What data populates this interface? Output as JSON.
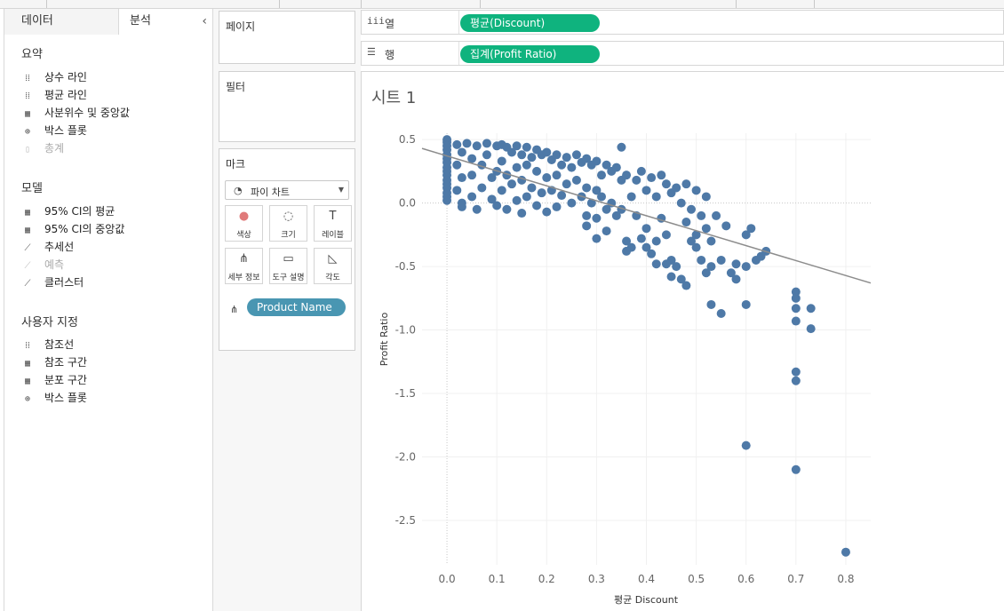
{
  "tabs": {
    "data": "데이터",
    "analysis": "분석"
  },
  "analytics": {
    "summary_title": "요약",
    "summary_items": [
      {
        "label": "상수 라인",
        "icon": "constant-line-icon",
        "glyph": "⁞⁞",
        "disabled": false
      },
      {
        "label": "평균 라인",
        "icon": "average-line-icon",
        "glyph": "⁞⁞",
        "disabled": false
      },
      {
        "label": "사분위수 및 중앙값",
        "icon": "quartile-icon",
        "glyph": "▦",
        "disabled": false
      },
      {
        "label": "박스 플롯",
        "icon": "box-plot-icon",
        "glyph": "⊕",
        "disabled": false
      },
      {
        "label": "총계",
        "icon": "totals-icon",
        "glyph": "▯",
        "disabled": true
      }
    ],
    "model_title": "모델",
    "model_items": [
      {
        "label": "95% CI의 평균",
        "icon": "ci-mean-icon",
        "glyph": "▦",
        "disabled": false,
        "selected": false
      },
      {
        "label": "95% CI의 중앙값",
        "icon": "ci-median-icon",
        "glyph": "▦",
        "disabled": false,
        "selected": false
      },
      {
        "label": "추세선",
        "icon": "trend-line-icon",
        "glyph": "⟋",
        "disabled": false,
        "selected": true
      },
      {
        "label": "예측",
        "icon": "forecast-icon",
        "glyph": "⟋",
        "disabled": true,
        "selected": false
      },
      {
        "label": "클러스터",
        "icon": "cluster-icon",
        "glyph": "⟋",
        "disabled": false,
        "selected": false
      }
    ],
    "custom_title": "사용자 지정",
    "custom_items": [
      {
        "label": "참조선",
        "icon": "reference-line-icon",
        "glyph": "⁞⁞",
        "disabled": false
      },
      {
        "label": "참조 구간",
        "icon": "reference-band-icon",
        "glyph": "▦",
        "disabled": false
      },
      {
        "label": "분포 구간",
        "icon": "distribution-band-icon",
        "glyph": "▦",
        "disabled": false
      },
      {
        "label": "박스 플롯",
        "icon": "box-plot-icon",
        "glyph": "⊕",
        "disabled": false
      }
    ]
  },
  "cards": {
    "pages_title": "페이지",
    "filters_title": "필터",
    "marks_title": "마크",
    "mark_type": "파이 차트",
    "mark_buttons": [
      {
        "label": "색상",
        "icon": "color-icon",
        "glyph": "●"
      },
      {
        "label": "크기",
        "icon": "size-icon",
        "glyph": "◌"
      },
      {
        "label": "레이블",
        "icon": "label-icon",
        "glyph": "T"
      },
      {
        "label": "세부 정보",
        "icon": "detail-icon",
        "glyph": "⋔"
      },
      {
        "label": "도구 설명",
        "icon": "tooltip-icon",
        "glyph": "▭"
      },
      {
        "label": "각도",
        "icon": "angle-icon",
        "glyph": "◺"
      }
    ],
    "detail_field": "Product Name"
  },
  "shelves": {
    "columns_label": "열",
    "rows_label": "행",
    "columns_pill": "평균(Discount)",
    "rows_pill": "집계(Profit Ratio)"
  },
  "sheet": {
    "title": "시트 1"
  },
  "colors": {
    "marks": "#4e79a7",
    "trend": "#8c8c8c",
    "pill_green": "#0fb37e",
    "pill_blue": "#4996b2"
  },
  "chart_data": {
    "type": "scatter",
    "xlabel": "평균 Discount",
    "ylabel": "Profit Ratio",
    "xlim": [
      -0.05,
      0.85
    ],
    "ylim": [
      -2.85,
      0.55
    ],
    "x_ticks": [
      "0.0",
      "0.1",
      "0.2",
      "0.3",
      "0.4",
      "0.5",
      "0.6",
      "0.7",
      "0.8"
    ],
    "y_ticks": [
      "0.5",
      "0.0",
      "-0.5",
      "-1.0",
      "-1.5",
      "-2.0",
      "-2.5"
    ],
    "trend_line": {
      "x": [
        -0.05,
        0.85
      ],
      "y": [
        0.43,
        -0.63
      ]
    },
    "series": [
      {
        "points": [
          [
            0.0,
            0.5
          ],
          [
            0.0,
            0.48
          ],
          [
            0.0,
            0.45
          ],
          [
            0.0,
            0.42
          ],
          [
            0.0,
            0.38
          ],
          [
            0.0,
            0.35
          ],
          [
            0.0,
            0.32
          ],
          [
            0.0,
            0.28
          ],
          [
            0.0,
            0.25
          ],
          [
            0.0,
            0.22
          ],
          [
            0.0,
            0.18
          ],
          [
            0.0,
            0.15
          ],
          [
            0.0,
            0.12
          ],
          [
            0.0,
            0.08
          ],
          [
            0.0,
            0.05
          ],
          [
            0.0,
            0.02
          ],
          [
            0.02,
            0.46
          ],
          [
            0.03,
            0.4
          ],
          [
            0.02,
            0.3
          ],
          [
            0.03,
            0.2
          ],
          [
            0.02,
            0.1
          ],
          [
            0.03,
            0.0
          ],
          [
            0.03,
            -0.03
          ],
          [
            0.04,
            0.47
          ],
          [
            0.05,
            0.35
          ],
          [
            0.05,
            0.22
          ],
          [
            0.05,
            0.05
          ],
          [
            0.06,
            -0.05
          ],
          [
            0.06,
            0.45
          ],
          [
            0.07,
            0.3
          ],
          [
            0.07,
            0.12
          ],
          [
            0.08,
            0.47
          ],
          [
            0.08,
            0.38
          ],
          [
            0.09,
            0.2
          ],
          [
            0.09,
            0.03
          ],
          [
            0.1,
            0.45
          ],
          [
            0.1,
            0.25
          ],
          [
            0.1,
            -0.02
          ],
          [
            0.11,
            0.46
          ],
          [
            0.11,
            0.33
          ],
          [
            0.11,
            0.1
          ],
          [
            0.12,
            0.44
          ],
          [
            0.12,
            0.22
          ],
          [
            0.12,
            -0.05
          ],
          [
            0.13,
            0.4
          ],
          [
            0.13,
            0.15
          ],
          [
            0.14,
            0.45
          ],
          [
            0.14,
            0.28
          ],
          [
            0.14,
            0.02
          ],
          [
            0.15,
            0.38
          ],
          [
            0.15,
            0.18
          ],
          [
            0.15,
            -0.08
          ],
          [
            0.16,
            0.44
          ],
          [
            0.16,
            0.3
          ],
          [
            0.16,
            0.05
          ],
          [
            0.17,
            0.36
          ],
          [
            0.17,
            0.12
          ],
          [
            0.18,
            0.42
          ],
          [
            0.18,
            0.25
          ],
          [
            0.18,
            -0.02
          ],
          [
            0.19,
            0.38
          ],
          [
            0.19,
            0.08
          ],
          [
            0.2,
            0.4
          ],
          [
            0.2,
            0.2
          ],
          [
            0.2,
            -0.07
          ],
          [
            0.21,
            0.34
          ],
          [
            0.21,
            0.1
          ],
          [
            0.22,
            0.38
          ],
          [
            0.22,
            0.22
          ],
          [
            0.22,
            -0.03
          ],
          [
            0.23,
            0.3
          ],
          [
            0.23,
            0.06
          ],
          [
            0.24,
            0.36
          ],
          [
            0.24,
            0.15
          ],
          [
            0.25,
            0.28
          ],
          [
            0.25,
            0.0
          ],
          [
            0.26,
            0.38
          ],
          [
            0.26,
            0.18
          ],
          [
            0.27,
            0.32
          ],
          [
            0.27,
            0.05
          ],
          [
            0.28,
            0.35
          ],
          [
            0.28,
            0.12
          ],
          [
            0.28,
            -0.1
          ],
          [
            0.29,
            0.3
          ],
          [
            0.29,
            0.0
          ],
          [
            0.3,
            0.33
          ],
          [
            0.3,
            0.1
          ],
          [
            0.3,
            -0.12
          ],
          [
            0.31,
            0.22
          ],
          [
            0.31,
            0.05
          ],
          [
            0.32,
            0.3
          ],
          [
            0.32,
            -0.05
          ],
          [
            0.33,
            0.25
          ],
          [
            0.33,
            0.0
          ],
          [
            0.34,
            0.28
          ],
          [
            0.34,
            -0.1
          ],
          [
            0.35,
            0.44
          ],
          [
            0.35,
            0.18
          ],
          [
            0.35,
            -0.05
          ],
          [
            0.36,
            0.22
          ],
          [
            0.36,
            -0.3
          ],
          [
            0.37,
            0.05
          ],
          [
            0.37,
            -0.35
          ],
          [
            0.38,
            0.18
          ],
          [
            0.38,
            -0.1
          ],
          [
            0.39,
            0.25
          ],
          [
            0.39,
            -0.28
          ],
          [
            0.4,
            0.1
          ],
          [
            0.4,
            -0.2
          ],
          [
            0.41,
            0.2
          ],
          [
            0.41,
            -0.4
          ],
          [
            0.42,
            0.05
          ],
          [
            0.42,
            -0.3
          ],
          [
            0.43,
            0.22
          ],
          [
            0.43,
            -0.12
          ],
          [
            0.44,
            0.15
          ],
          [
            0.44,
            -0.25
          ],
          [
            0.45,
            0.08
          ],
          [
            0.45,
            -0.45
          ],
          [
            0.46,
            0.12
          ],
          [
            0.46,
            -0.5
          ],
          [
            0.47,
            0.0
          ],
          [
            0.48,
            0.15
          ],
          [
            0.48,
            -0.15
          ],
          [
            0.49,
            -0.05
          ],
          [
            0.49,
            -0.3
          ],
          [
            0.5,
            0.1
          ],
          [
            0.5,
            -0.25
          ],
          [
            0.51,
            -0.1
          ],
          [
            0.51,
            -0.45
          ],
          [
            0.52,
            0.05
          ],
          [
            0.52,
            -0.2
          ],
          [
            0.53,
            -0.3
          ],
          [
            0.54,
            -0.1
          ],
          [
            0.55,
            -0.45
          ],
          [
            0.56,
            -0.18
          ],
          [
            0.57,
            -0.55
          ],
          [
            0.6,
            -0.25
          ],
          [
            0.6,
            -0.5
          ],
          [
            0.61,
            -0.2
          ],
          [
            0.62,
            -0.45
          ],
          [
            0.63,
            -0.42
          ],
          [
            0.64,
            -0.38
          ],
          [
            0.58,
            -0.6
          ],
          [
            0.52,
            -0.55
          ],
          [
            0.47,
            -0.6
          ],
          [
            0.45,
            -0.58
          ],
          [
            0.3,
            -0.28
          ],
          [
            0.32,
            -0.22
          ],
          [
            0.28,
            -0.18
          ],
          [
            0.36,
            -0.38
          ],
          [
            0.4,
            -0.35
          ],
          [
            0.42,
            -0.48
          ],
          [
            0.48,
            -0.65
          ],
          [
            0.44,
            -0.48
          ],
          [
            0.5,
            -0.35
          ],
          [
            0.53,
            -0.5
          ],
          [
            0.58,
            -0.48
          ],
          [
            0.53,
            -0.8
          ],
          [
            0.55,
            -0.87
          ],
          [
            0.6,
            -0.8
          ],
          [
            0.7,
            -0.7
          ],
          [
            0.7,
            -0.75
          ],
          [
            0.7,
            -0.83
          ],
          [
            0.7,
            -0.93
          ],
          [
            0.73,
            -0.83
          ],
          [
            0.73,
            -0.99
          ],
          [
            0.7,
            -1.33
          ],
          [
            0.7,
            -1.4
          ],
          [
            0.6,
            -1.91
          ],
          [
            0.7,
            -2.1
          ],
          [
            0.8,
            -2.75
          ]
        ]
      }
    ]
  }
}
